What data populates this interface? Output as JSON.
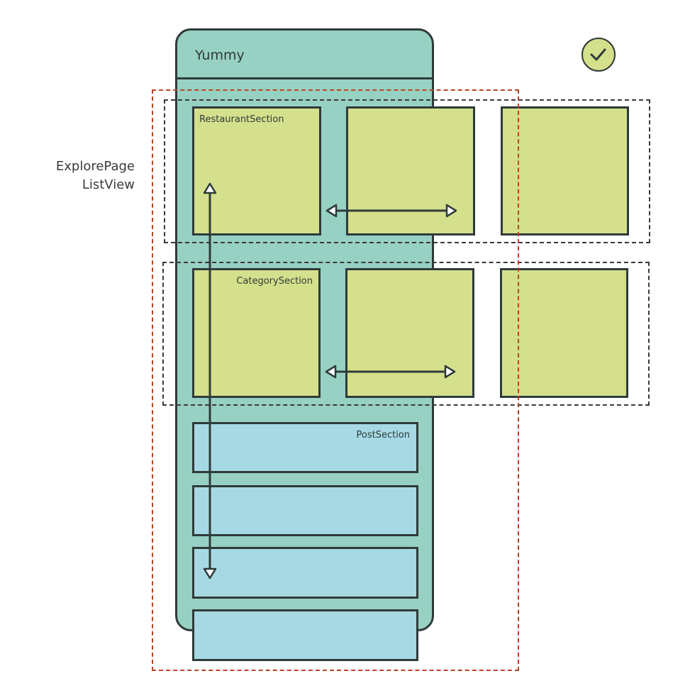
{
  "app": {
    "title": "Yummy"
  },
  "side_label": {
    "line1": "ExplorePage",
    "line2": "ListView"
  },
  "sections": {
    "restaurant": "RestaurantSection",
    "category": "CategorySection",
    "post": "PostSection"
  },
  "icons": {
    "status": "check-circle-icon"
  },
  "colors": {
    "phone": "#97d1c3",
    "card_green": "#d4e08b",
    "card_blue": "#a6d9e3",
    "outline": "#2f3a3a",
    "listview_dash": "#b8451f",
    "row_dash": "#3a3a3a"
  }
}
